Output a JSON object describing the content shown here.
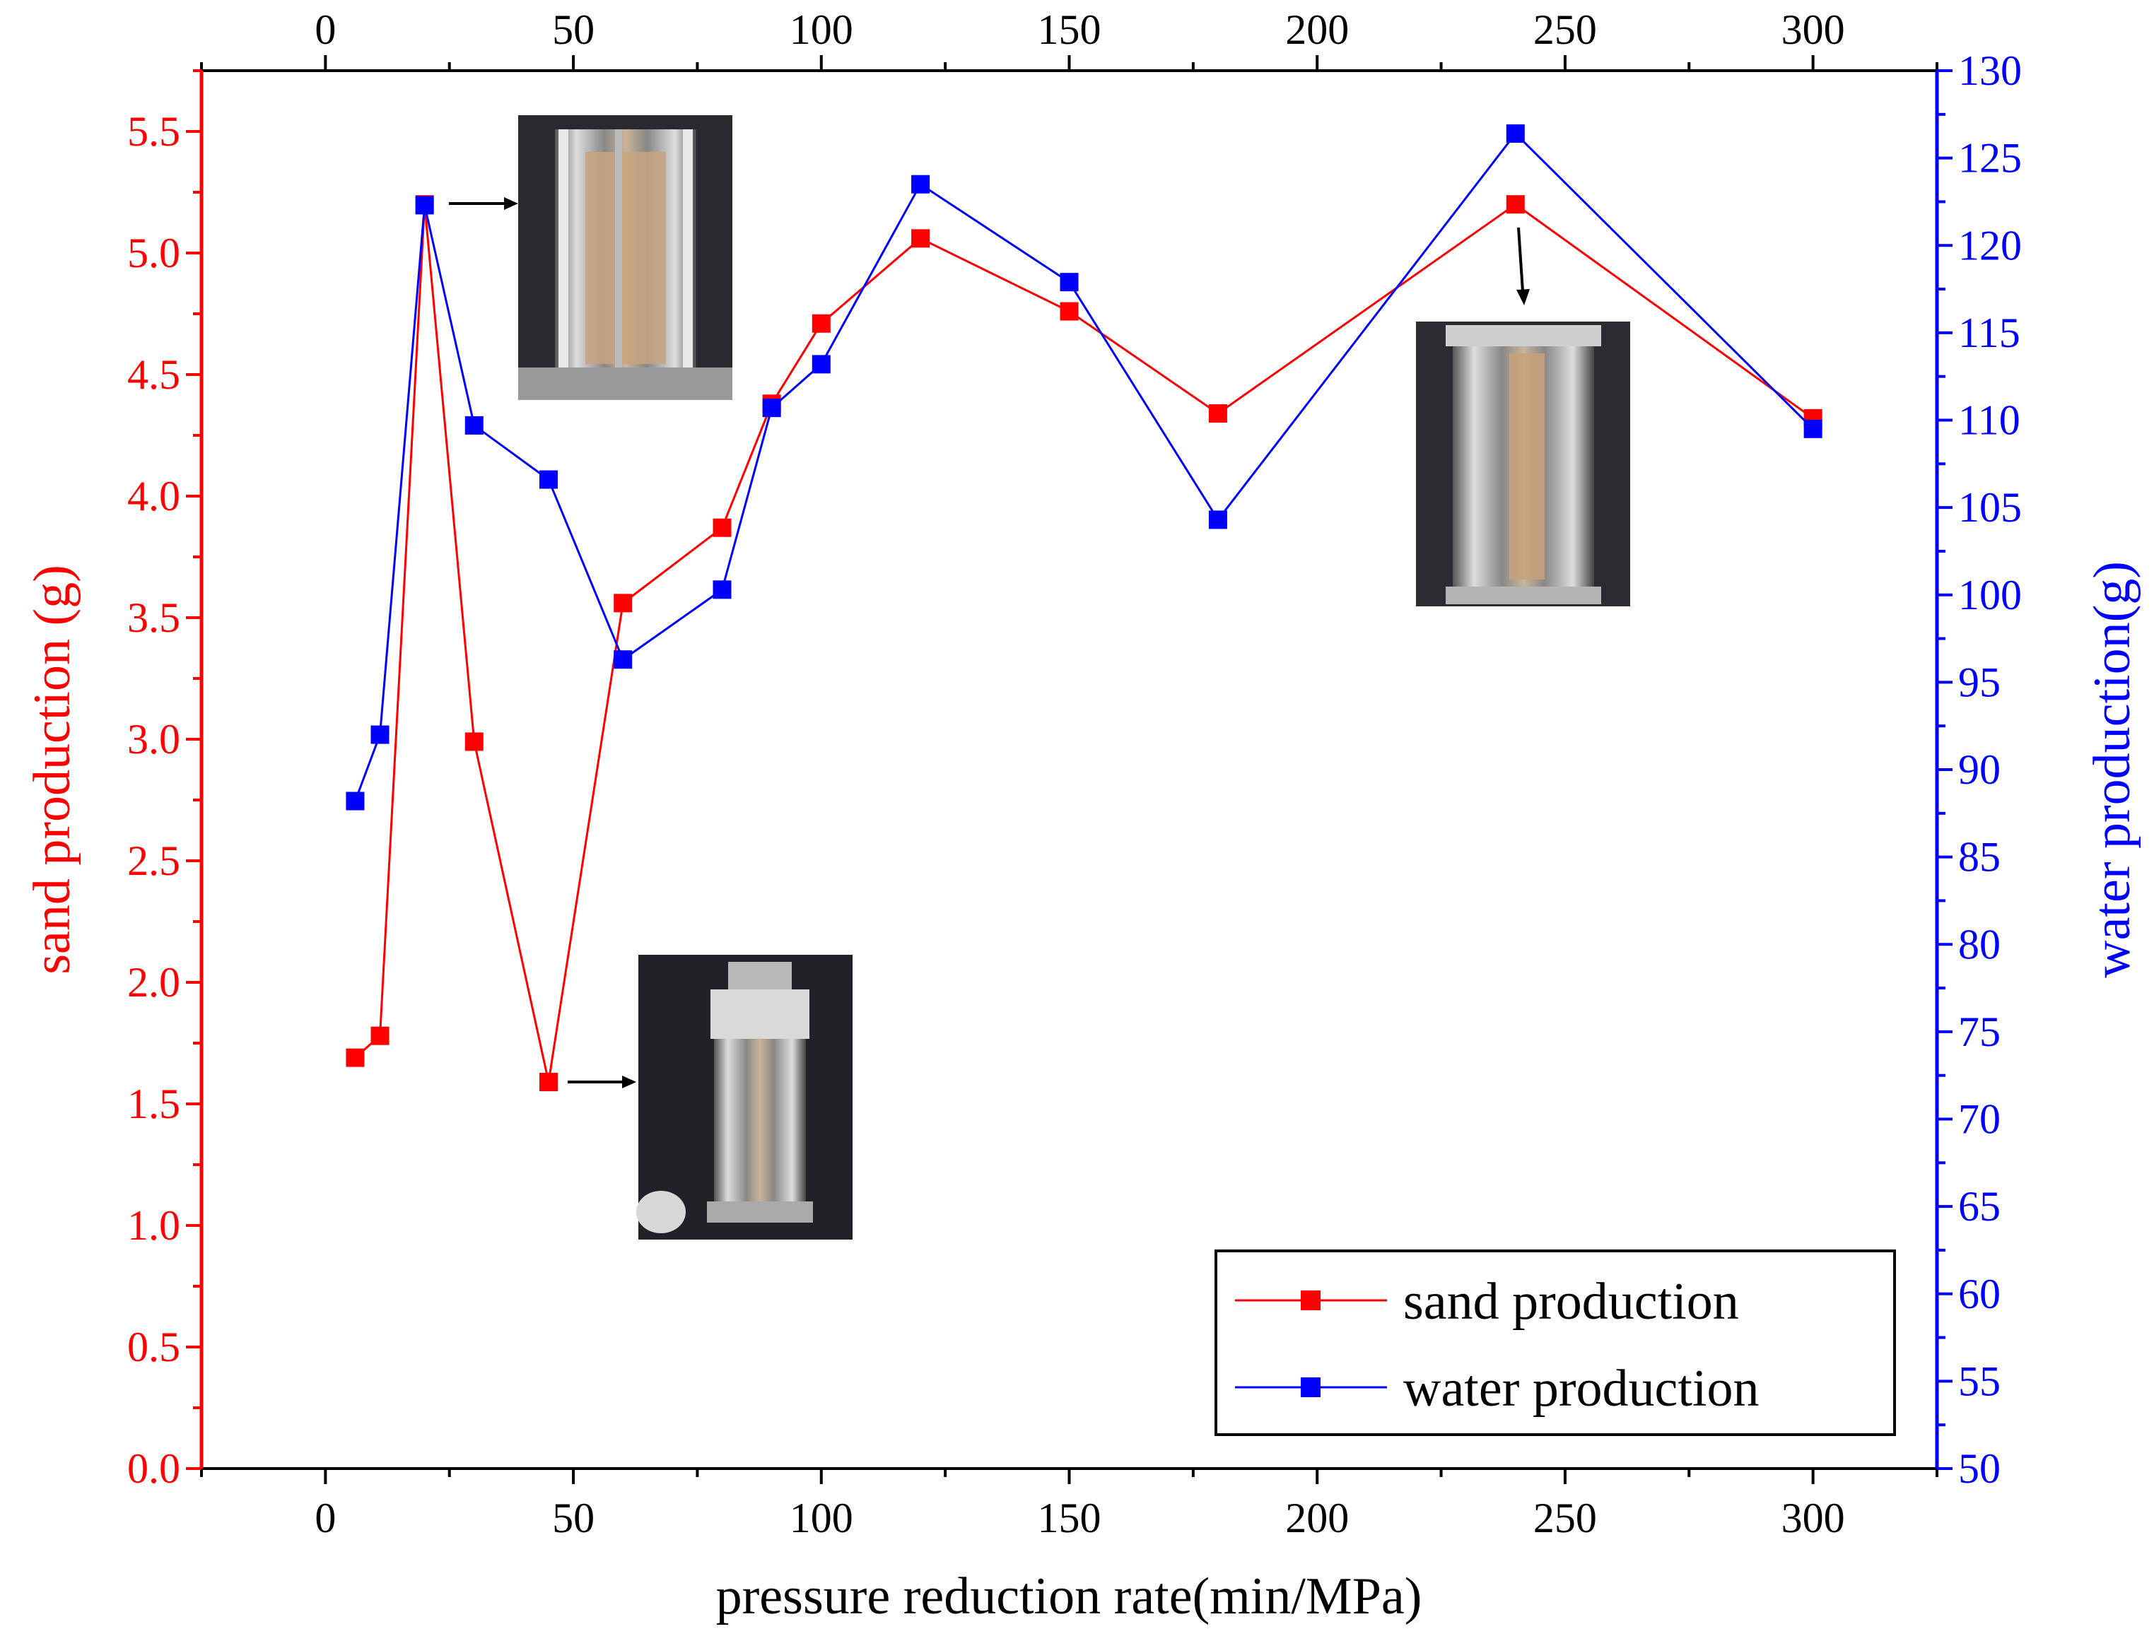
{
  "chart_data": {
    "type": "line",
    "title": "",
    "xlabel": "pressure reduction rate(min/MPa)",
    "ylabel_left": "sand production (g)",
    "ylabel_right": "water production(g)",
    "xlim": [
      -25,
      325
    ],
    "ylim_left": [
      0,
      5.75
    ],
    "ylim_right": [
      50,
      130
    ],
    "x_ticks": [
      0,
      50,
      100,
      150,
      200,
      250,
      300
    ],
    "x_tick_labels": [
      "0",
      "50",
      "100",
      "150",
      "200",
      "250",
      "300"
    ],
    "y_left_ticks": [
      0.0,
      0.5,
      1.0,
      1.5,
      2.0,
      2.5,
      3.0,
      3.5,
      4.0,
      4.5,
      5.0,
      5.5
    ],
    "y_left_tick_labels": [
      "0.0",
      "0.5",
      "1.0",
      "1.5",
      "2.0",
      "2.5",
      "3.0",
      "3.5",
      "4.0",
      "4.5",
      "5.0",
      "5.5"
    ],
    "y_right_ticks": [
      50,
      55,
      60,
      65,
      70,
      75,
      80,
      85,
      90,
      95,
      100,
      105,
      110,
      115,
      120,
      125,
      130
    ],
    "y_right_tick_labels": [
      "50",
      "55",
      "60",
      "65",
      "70",
      "75",
      "80",
      "85",
      "90",
      "95",
      "100",
      "105",
      "110",
      "115",
      "120",
      "125",
      "130"
    ],
    "series": [
      {
        "name": "sand production",
        "axis": "left",
        "color": "#ff0000",
        "x": [
          6,
          11,
          20,
          30,
          45,
          60,
          80,
          90,
          100,
          120,
          150,
          180,
          240,
          300
        ],
        "values": [
          1.69,
          1.78,
          5.2,
          2.99,
          1.59,
          3.56,
          3.87,
          4.38,
          4.71,
          5.06,
          4.76,
          4.34,
          5.2,
          4.32
        ]
      },
      {
        "name": "water production",
        "axis": "right",
        "color": "#0000ff",
        "x": [
          6,
          11,
          20,
          30,
          45,
          60,
          80,
          90,
          100,
          120,
          150,
          180,
          240,
          300
        ],
        "values": [
          88.2,
          92.0,
          122.3,
          109.7,
          106.6,
          96.3,
          100.3,
          110.7,
          113.2,
          123.5,
          117.9,
          104.3,
          126.4,
          109.5
        ]
      }
    ],
    "legend": {
      "position": "bottom-right",
      "entries": [
        "sand production",
        "water production"
      ]
    },
    "annotations": [
      {
        "type": "photo-arrow",
        "anchor_x": 20,
        "anchor_series": "water production",
        "note": "sample column photo"
      },
      {
        "type": "photo-arrow",
        "anchor_x": 45,
        "anchor_series": "sand production",
        "note": "sample column photo"
      },
      {
        "type": "photo-arrow",
        "anchor_x": 240,
        "anchor_series": "sand production",
        "note": "sample column photo"
      }
    ]
  },
  "colors": {
    "left_axis": "#ff0000",
    "right_axis": "#0000ff",
    "frame": "#000000"
  }
}
